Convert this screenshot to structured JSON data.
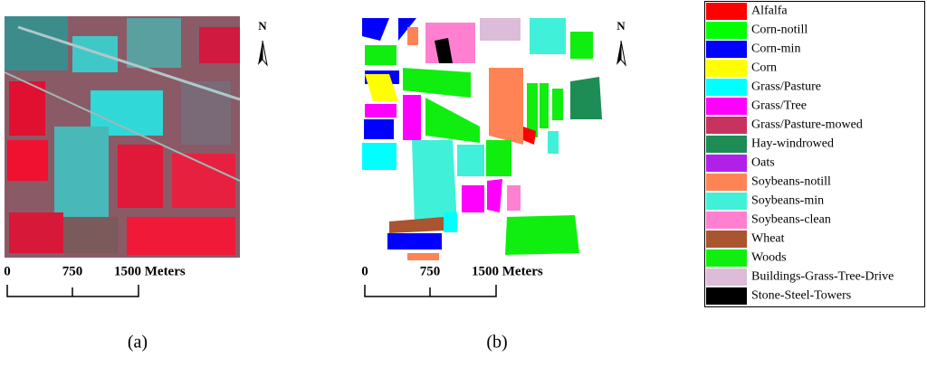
{
  "panels": [
    {
      "caption": "(a)",
      "north": "N",
      "scale_labels": [
        "0",
        "750",
        "1500 Meters"
      ]
    },
    {
      "caption": "(b)",
      "north": "N",
      "scale_labels": [
        "0",
        "750",
        "1500 Meters"
      ]
    }
  ],
  "legend": {
    "items": [
      {
        "name": "Alfalfa",
        "color": "#ff0000"
      },
      {
        "name": "Corn-notill",
        "color": "#00ff00"
      },
      {
        "name": "Corn-min",
        "color": "#0000ff"
      },
      {
        "name": "Corn",
        "color": "#ffff00"
      },
      {
        "name": "Grass/Pasture",
        "color": "#00ffff"
      },
      {
        "name": "Grass/Tree",
        "color": "#ff00ff"
      },
      {
        "name": "Grass/Pasture-mowed",
        "color": "#c8325f"
      },
      {
        "name": "Hay-windrowed",
        "color": "#1e8c55"
      },
      {
        "name": "Oats",
        "color": "#b020e8"
      },
      {
        "name": "Soybeans-notill",
        "color": "#ff8355"
      },
      {
        "name": "Soybeans-min",
        "color": "#40f0d8"
      },
      {
        "name": "Soybeans-clean",
        "color": "#ff80d0"
      },
      {
        "name": "Wheat",
        "color": "#a85530"
      },
      {
        "name": "Woods",
        "color": "#10ee10"
      },
      {
        "name": "Buildings-Grass-Tree-Drive",
        "color": "#dcbcd8"
      },
      {
        "name": "Stone-Steel-Towers",
        "color": "#000000"
      }
    ]
  }
}
